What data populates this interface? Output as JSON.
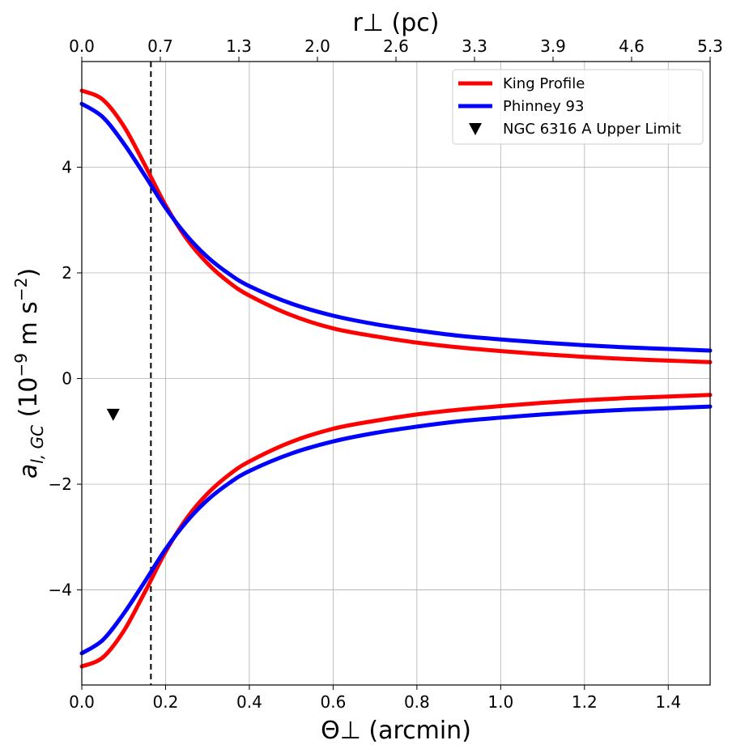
{
  "chart_data": {
    "type": "line",
    "xlabel": "Θ⊥ (arcmin)",
    "ylabel_parts": {
      "main": "a",
      "sub": "l, GC",
      "units_open": " (10",
      "exp": "−9",
      "units_mid": " m s",
      "exp2": "−2",
      "units_close": ")"
    },
    "top_xlabel": "r⊥ (pc)",
    "xlim": [
      0,
      1.5
    ],
    "ylim": [
      -5.8,
      6.0
    ],
    "x_ticks": [
      0.0,
      0.2,
      0.4,
      0.6,
      0.8,
      1.0,
      1.2,
      1.4
    ],
    "x_tick_labels": [
      "0.0",
      "0.2",
      "0.4",
      "0.6",
      "0.8",
      "1.0",
      "1.2",
      "1.4"
    ],
    "y_ticks": [
      -4,
      -2,
      0,
      2,
      4
    ],
    "y_tick_labels": [
      "−4",
      "−2",
      "0",
      "2",
      "4"
    ],
    "top_ticks": [
      0.0,
      0.1875,
      0.375,
      0.5625,
      0.75,
      0.9375,
      1.125,
      1.3125,
      1.5
    ],
    "top_tick_labels": [
      "0.0",
      "0.7",
      "1.3",
      "2.0",
      "2.6",
      "3.3",
      "3.9",
      "4.6",
      "5.3"
    ],
    "grid": true,
    "vline_x": 0.165,
    "series": [
      {
        "name": "King Profile",
        "color": "#ff0000",
        "x": [
          0.0,
          0.05,
          0.1,
          0.15,
          0.2,
          0.25,
          0.3,
          0.35,
          0.4,
          0.5,
          0.6,
          0.7,
          0.8,
          0.9,
          1.0,
          1.1,
          1.2,
          1.3,
          1.4,
          1.5
        ],
        "y": [
          5.45,
          5.28,
          4.78,
          4.05,
          3.28,
          2.65,
          2.18,
          1.83,
          1.57,
          1.2,
          0.95,
          0.8,
          0.68,
          0.59,
          0.52,
          0.46,
          0.41,
          0.37,
          0.34,
          0.31
        ]
      },
      {
        "name": "King Profile (negative)",
        "color": "#ff0000",
        "x": [
          0.0,
          0.05,
          0.1,
          0.15,
          0.2,
          0.25,
          0.3,
          0.35,
          0.4,
          0.5,
          0.6,
          0.7,
          0.8,
          0.9,
          1.0,
          1.1,
          1.2,
          1.3,
          1.4,
          1.5
        ],
        "y": [
          -5.45,
          -5.28,
          -4.78,
          -4.05,
          -3.28,
          -2.65,
          -2.18,
          -1.83,
          -1.57,
          -1.2,
          -0.95,
          -0.8,
          -0.68,
          -0.59,
          -0.52,
          -0.46,
          -0.41,
          -0.37,
          -0.34,
          -0.31
        ]
      },
      {
        "name": "Phinney 93",
        "color": "#0000ff",
        "x": [
          0.0,
          0.05,
          0.1,
          0.15,
          0.2,
          0.25,
          0.3,
          0.35,
          0.4,
          0.5,
          0.6,
          0.7,
          0.8,
          0.9,
          1.0,
          1.1,
          1.2,
          1.3,
          1.4,
          1.5
        ],
        "y": [
          5.2,
          4.95,
          4.45,
          3.85,
          3.23,
          2.71,
          2.3,
          1.99,
          1.75,
          1.42,
          1.19,
          1.03,
          0.91,
          0.81,
          0.74,
          0.68,
          0.63,
          0.59,
          0.56,
          0.53
        ]
      },
      {
        "name": "Phinney 93 (negative)",
        "color": "#0000ff",
        "x": [
          0.0,
          0.05,
          0.1,
          0.15,
          0.2,
          0.25,
          0.3,
          0.35,
          0.4,
          0.5,
          0.6,
          0.7,
          0.8,
          0.9,
          1.0,
          1.1,
          1.2,
          1.3,
          1.4,
          1.5
        ],
        "y": [
          -5.2,
          -4.95,
          -4.45,
          -3.85,
          -3.23,
          -2.71,
          -2.3,
          -1.99,
          -1.75,
          -1.42,
          -1.19,
          -1.03,
          -0.91,
          -0.81,
          -0.74,
          -0.68,
          -0.63,
          -0.59,
          -0.56,
          -0.53
        ]
      }
    ],
    "marker": {
      "name": "NGC 6316 A Upper Limit",
      "x": 0.075,
      "y": -0.68,
      "color": "#000000",
      "shape": "down-triangle"
    },
    "legend": {
      "placement": "top-right",
      "entries": [
        {
          "label": "King Profile",
          "color": "#ff0000",
          "kind": "line"
        },
        {
          "label": "Phinney 93",
          "color": "#0000ff",
          "kind": "line"
        },
        {
          "label": "NGC 6316 A Upper Limit",
          "color": "#000000",
          "kind": "marker"
        }
      ]
    }
  }
}
